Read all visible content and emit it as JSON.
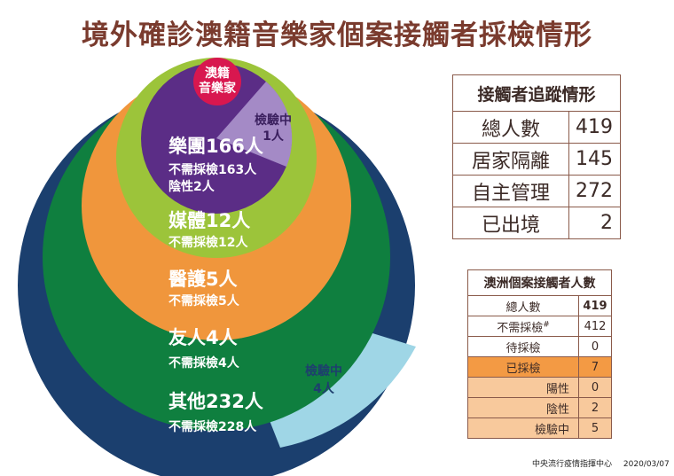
{
  "title": "境外確診澳籍音樂家個案接觸者採檢情形",
  "colors": {
    "title": "#7a3b2e",
    "others": "#1b3f6e",
    "friends": "#0f7f3f",
    "medical": "#f0963c",
    "media": "#9cc43a",
    "band": "#5b2d86",
    "band_testing": "#a48ac6",
    "others_testing": "#9fd6e6",
    "case": "#d8174f"
  },
  "center_case": {
    "line1": "澳籍",
    "line2": "音樂家"
  },
  "rings": [
    {
      "key": "band",
      "title": "樂團166人",
      "line2": "不需採檢163人",
      "line3": "陰性2人",
      "testing": "檢驗中",
      "testing_count": "1人"
    },
    {
      "key": "media",
      "title": "媒體12人",
      "line2": "不需採檢12人"
    },
    {
      "key": "medical",
      "title": "醫護5人",
      "line2": "不需採檢5人"
    },
    {
      "key": "friends",
      "title": "友人4人",
      "line2": "不需採檢4人"
    },
    {
      "key": "others",
      "title": "其他232人",
      "line2": "不需採檢228人",
      "testing": "檢驗中",
      "testing_count": "4人"
    }
  ],
  "tracking_table": {
    "header": "接觸者追蹤情形",
    "rows": [
      {
        "label": "總人數",
        "value": "419"
      },
      {
        "label": "居家隔離",
        "value": "145"
      },
      {
        "label": "自主管理",
        "value": "272"
      },
      {
        "label": "已出境",
        "value": "2"
      }
    ]
  },
  "test_table": {
    "header": "澳洲個案接觸者人數",
    "rows": [
      {
        "label": "總人數",
        "value": "419"
      },
      {
        "label": "不需採檢",
        "note": "#",
        "value": "412"
      },
      {
        "label": "待採檢",
        "value": "0"
      },
      {
        "label": "已採檢",
        "value": "7"
      },
      {
        "label": "陽性",
        "value": "0"
      },
      {
        "label": "陰性",
        "value": "2"
      },
      {
        "label": "檢驗中",
        "value": "5"
      }
    ]
  },
  "footer": {
    "source": "中央流行疫情指揮中心",
    "date": "2020/03/07"
  }
}
